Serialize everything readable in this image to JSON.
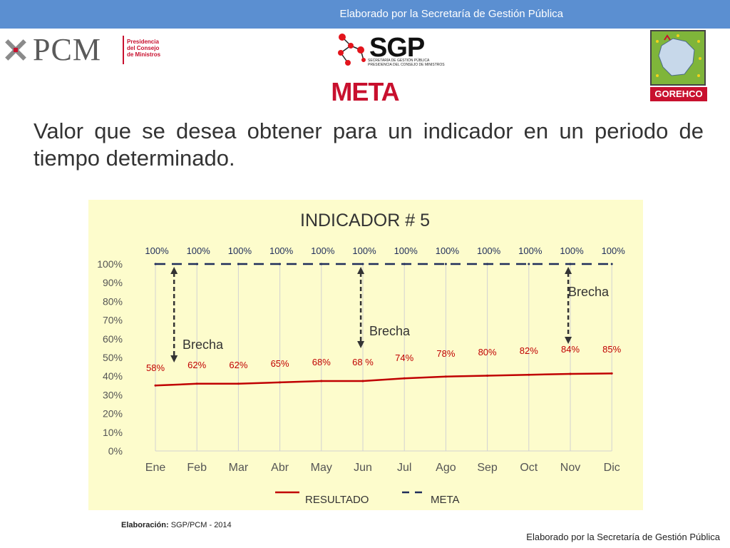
{
  "header": {
    "banner_text": "Elaborado por la Secretaría de Gestión Pública"
  },
  "logos": {
    "pcm_word": "PCM",
    "pcm_sub": [
      "Presidencia",
      "del Consejo",
      "de Ministros"
    ],
    "sgp_word": "SGP",
    "sgp_sub": [
      "SECRETARÍA DE GESTIÓN PÚBLICA",
      "PRESIDENCIA DEL CONSEJO DE MINISTROS"
    ],
    "gorehco_label": "GOREHCO",
    "colors": {
      "pcm_red": "#c8102e",
      "sgp_red": "#e3141c",
      "gorehco_green": "#7fb53a"
    }
  },
  "slide": {
    "title": "META",
    "description": "Valor que se desea obtener para un indicador en un periodo de tiempo determinado."
  },
  "chart_data": {
    "type": "line",
    "title": "INDICADOR # 5",
    "categories": [
      "Ene",
      "Feb",
      "Mar",
      "Abr",
      "May",
      "Jun",
      "Jul",
      "Ago",
      "Sep",
      "Oct",
      "Nov",
      "Dic"
    ],
    "series": [
      {
        "name": "RESULTADO",
        "values": [
          58,
          62,
          62,
          65,
          68,
          68,
          74,
          78,
          80,
          82,
          84,
          85
        ],
        "color": "#c00000",
        "style": "solid"
      },
      {
        "name": "META",
        "values": [
          100,
          100,
          100,
          100,
          100,
          100,
          100,
          100,
          100,
          100,
          100,
          100
        ],
        "color": "#1f2d5a",
        "style": "dashed"
      }
    ],
    "result_labels": [
      "58%",
      "62%",
      "62%",
      "65%",
      "68%",
      "68  %",
      "74%",
      "78%",
      "80%",
      "82%",
      "84%",
      "85%"
    ],
    "meta_labels": [
      "100%",
      "100%",
      "100%",
      "100%",
      "100%",
      "100%",
      "100%",
      "100%",
      "100%",
      "100%",
      "100%",
      "100%"
    ],
    "y_ticks": [
      "0%",
      "10%",
      "20%",
      "30%",
      "40%",
      "50%",
      "60%",
      "70%",
      "80%",
      "90%",
      "100%"
    ],
    "ylim": [
      0,
      100
    ],
    "annotations": [
      {
        "text": "Brecha",
        "category": "Feb"
      },
      {
        "text": "Brecha",
        "category": "Jul"
      },
      {
        "text": "Brecha",
        "category": "Nov"
      }
    ],
    "legend_position": "bottom",
    "background": "#fdfccc"
  },
  "footer": {
    "credit_label": "Elaboración:",
    "credit_value": "SGP/PCM - 2014",
    "right_text": "Elaborado por la Secretaría de Gestión Pública"
  }
}
